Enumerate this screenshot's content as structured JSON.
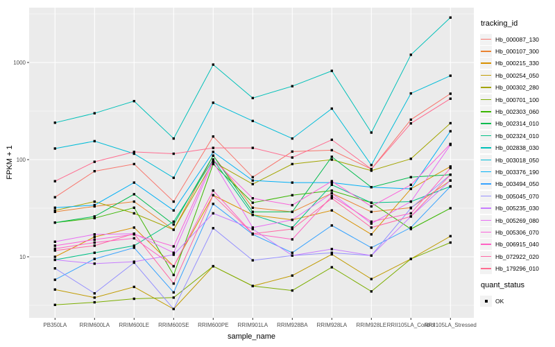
{
  "chart_data": {
    "type": "line",
    "title": "",
    "xlabel": "sample_name",
    "ylabel": "FPKM + 1",
    "y_scale": "log10",
    "y_ticks": [
      10,
      100,
      1000
    ],
    "y_minor_ticks": [
      3.162,
      31.62,
      316.2,
      3162
    ],
    "ylim": [
      2.5,
      3200
    ],
    "grid": true,
    "legend_position": "right",
    "panel_bg": "#EBEBEB",
    "grid_color": "#FFFFFF",
    "tick_text_color": "#4D4D4D",
    "point_color": "#000000",
    "legend_title": "tracking_id",
    "quant_legend_title": "quant_status",
    "quant_status_label": "OK",
    "categories": [
      "PB350LA",
      "RRIM600LA",
      "RRIM600LE",
      "RRIM600SE",
      "RRIM600PE",
      "RRIM901LA",
      "RRIM928BA",
      "RRIM928LA",
      "RRIM928LE",
      "RRII105LA_Control",
      "RRII105LA_Stressed"
    ],
    "series": [
      {
        "name": "Hb_000087_130",
        "color": "#F8766D",
        "values": [
          41,
          76,
          90,
          37,
          173,
          66,
          121,
          125,
          80,
          258,
          477
        ]
      },
      {
        "name": "Hb_000107_300",
        "color": "#EA8331",
        "values": [
          29,
          33,
          37,
          19,
          110,
          32,
          29,
          45,
          29,
          32,
          61
        ]
      },
      {
        "name": "Hb_000215_330",
        "color": "#D89000",
        "values": [
          10,
          16,
          20,
          8,
          43,
          27,
          24,
          30,
          17,
          50,
          85
        ]
      },
      {
        "name": "Hb_000254_050",
        "color": "#C09B00",
        "values": [
          4.6,
          3.8,
          4.9,
          2.9,
          8,
          5,
          6.4,
          10.6,
          5.9,
          9.5,
          16.3
        ]
      },
      {
        "name": "Hb_000302_280",
        "color": "#A3A500",
        "values": [
          30,
          37,
          28,
          19,
          95,
          56,
          90,
          100,
          77,
          102,
          237
        ]
      },
      {
        "name": "Hb_000701_100",
        "color": "#7CAE00",
        "values": [
          3.2,
          3.4,
          3.7,
          3.8,
          8,
          5,
          4.5,
          7.8,
          4.4,
          9.5,
          14
        ]
      },
      {
        "name": "Hb_002303_060",
        "color": "#39B600",
        "values": [
          22.5,
          25,
          32,
          6.5,
          90,
          36,
          43,
          48,
          36,
          19.3,
          31.6
        ]
      },
      {
        "name": "Hb_002314_010",
        "color": "#00BB4E",
        "values": [
          22.5,
          26,
          44,
          21.5,
          110,
          29,
          29,
          107,
          52,
          66,
          70
        ]
      },
      {
        "name": "Hb_002324_010",
        "color": "#00C087",
        "values": [
          9.3,
          11,
          13,
          23,
          100,
          27,
          20,
          55,
          36,
          37,
          53
        ]
      },
      {
        "name": "Hb_002838_030",
        "color": "#00C0B8",
        "values": [
          240,
          300,
          400,
          165,
          950,
          430,
          570,
          820,
          190,
          1200,
          2900
        ]
      },
      {
        "name": "Hb_003018_050",
        "color": "#00BCD8",
        "values": [
          130,
          155,
          115,
          65,
          385,
          250,
          165,
          335,
          88,
          480,
          730
        ]
      },
      {
        "name": "Hb_003376_190",
        "color": "#00B0F6",
        "values": [
          32,
          34,
          58,
          30,
          120,
          61,
          58,
          58,
          52,
          50,
          196
        ]
      },
      {
        "name": "Hb_003494_050",
        "color": "#35A2FF",
        "values": [
          5.8,
          9.5,
          12.4,
          4.3,
          35,
          17,
          11,
          21,
          12.4,
          20,
          53
        ]
      },
      {
        "name": "Hb_005045_070",
        "color": "#9590FF",
        "values": [
          7.6,
          4.2,
          8.7,
          2.9,
          19.7,
          9.2,
          10.3,
          11,
          10.3,
          31.6,
          70
        ]
      },
      {
        "name": "Hb_005235_030",
        "color": "#C77CFF",
        "values": [
          9.3,
          8.5,
          8.9,
          10.5,
          28,
          19.3,
          10.3,
          12,
          10.3,
          26,
          61
        ]
      },
      {
        "name": "Hb_005269_080",
        "color": "#E76BF3",
        "values": [
          14.3,
          17,
          17.3,
          11,
          95,
          20,
          24,
          45,
          22,
          37,
          142
        ]
      },
      {
        "name": "Hb_005306_070",
        "color": "#FA62DB",
        "values": [
          13,
          15,
          17,
          12.8,
          100,
          40,
          34,
          60,
          33,
          55,
          145
        ]
      },
      {
        "name": "Hb_006915_040",
        "color": "#FF61C3",
        "values": [
          12.1,
          14,
          15.5,
          8,
          48,
          17.3,
          15.1,
          42,
          23,
          28,
          82
        ]
      },
      {
        "name": "Hb_072922_020",
        "color": "#FF67A4",
        "values": [
          11.6,
          13,
          17.3,
          5.3,
          43,
          17.3,
          19.3,
          40,
          20,
          26,
          70
        ]
      },
      {
        "name": "Hb_179296_010",
        "color": "#FF6C90",
        "values": [
          60,
          95,
          120,
          115,
          132,
          132,
          105,
          160,
          80,
          236,
          424
        ]
      }
    ]
  }
}
